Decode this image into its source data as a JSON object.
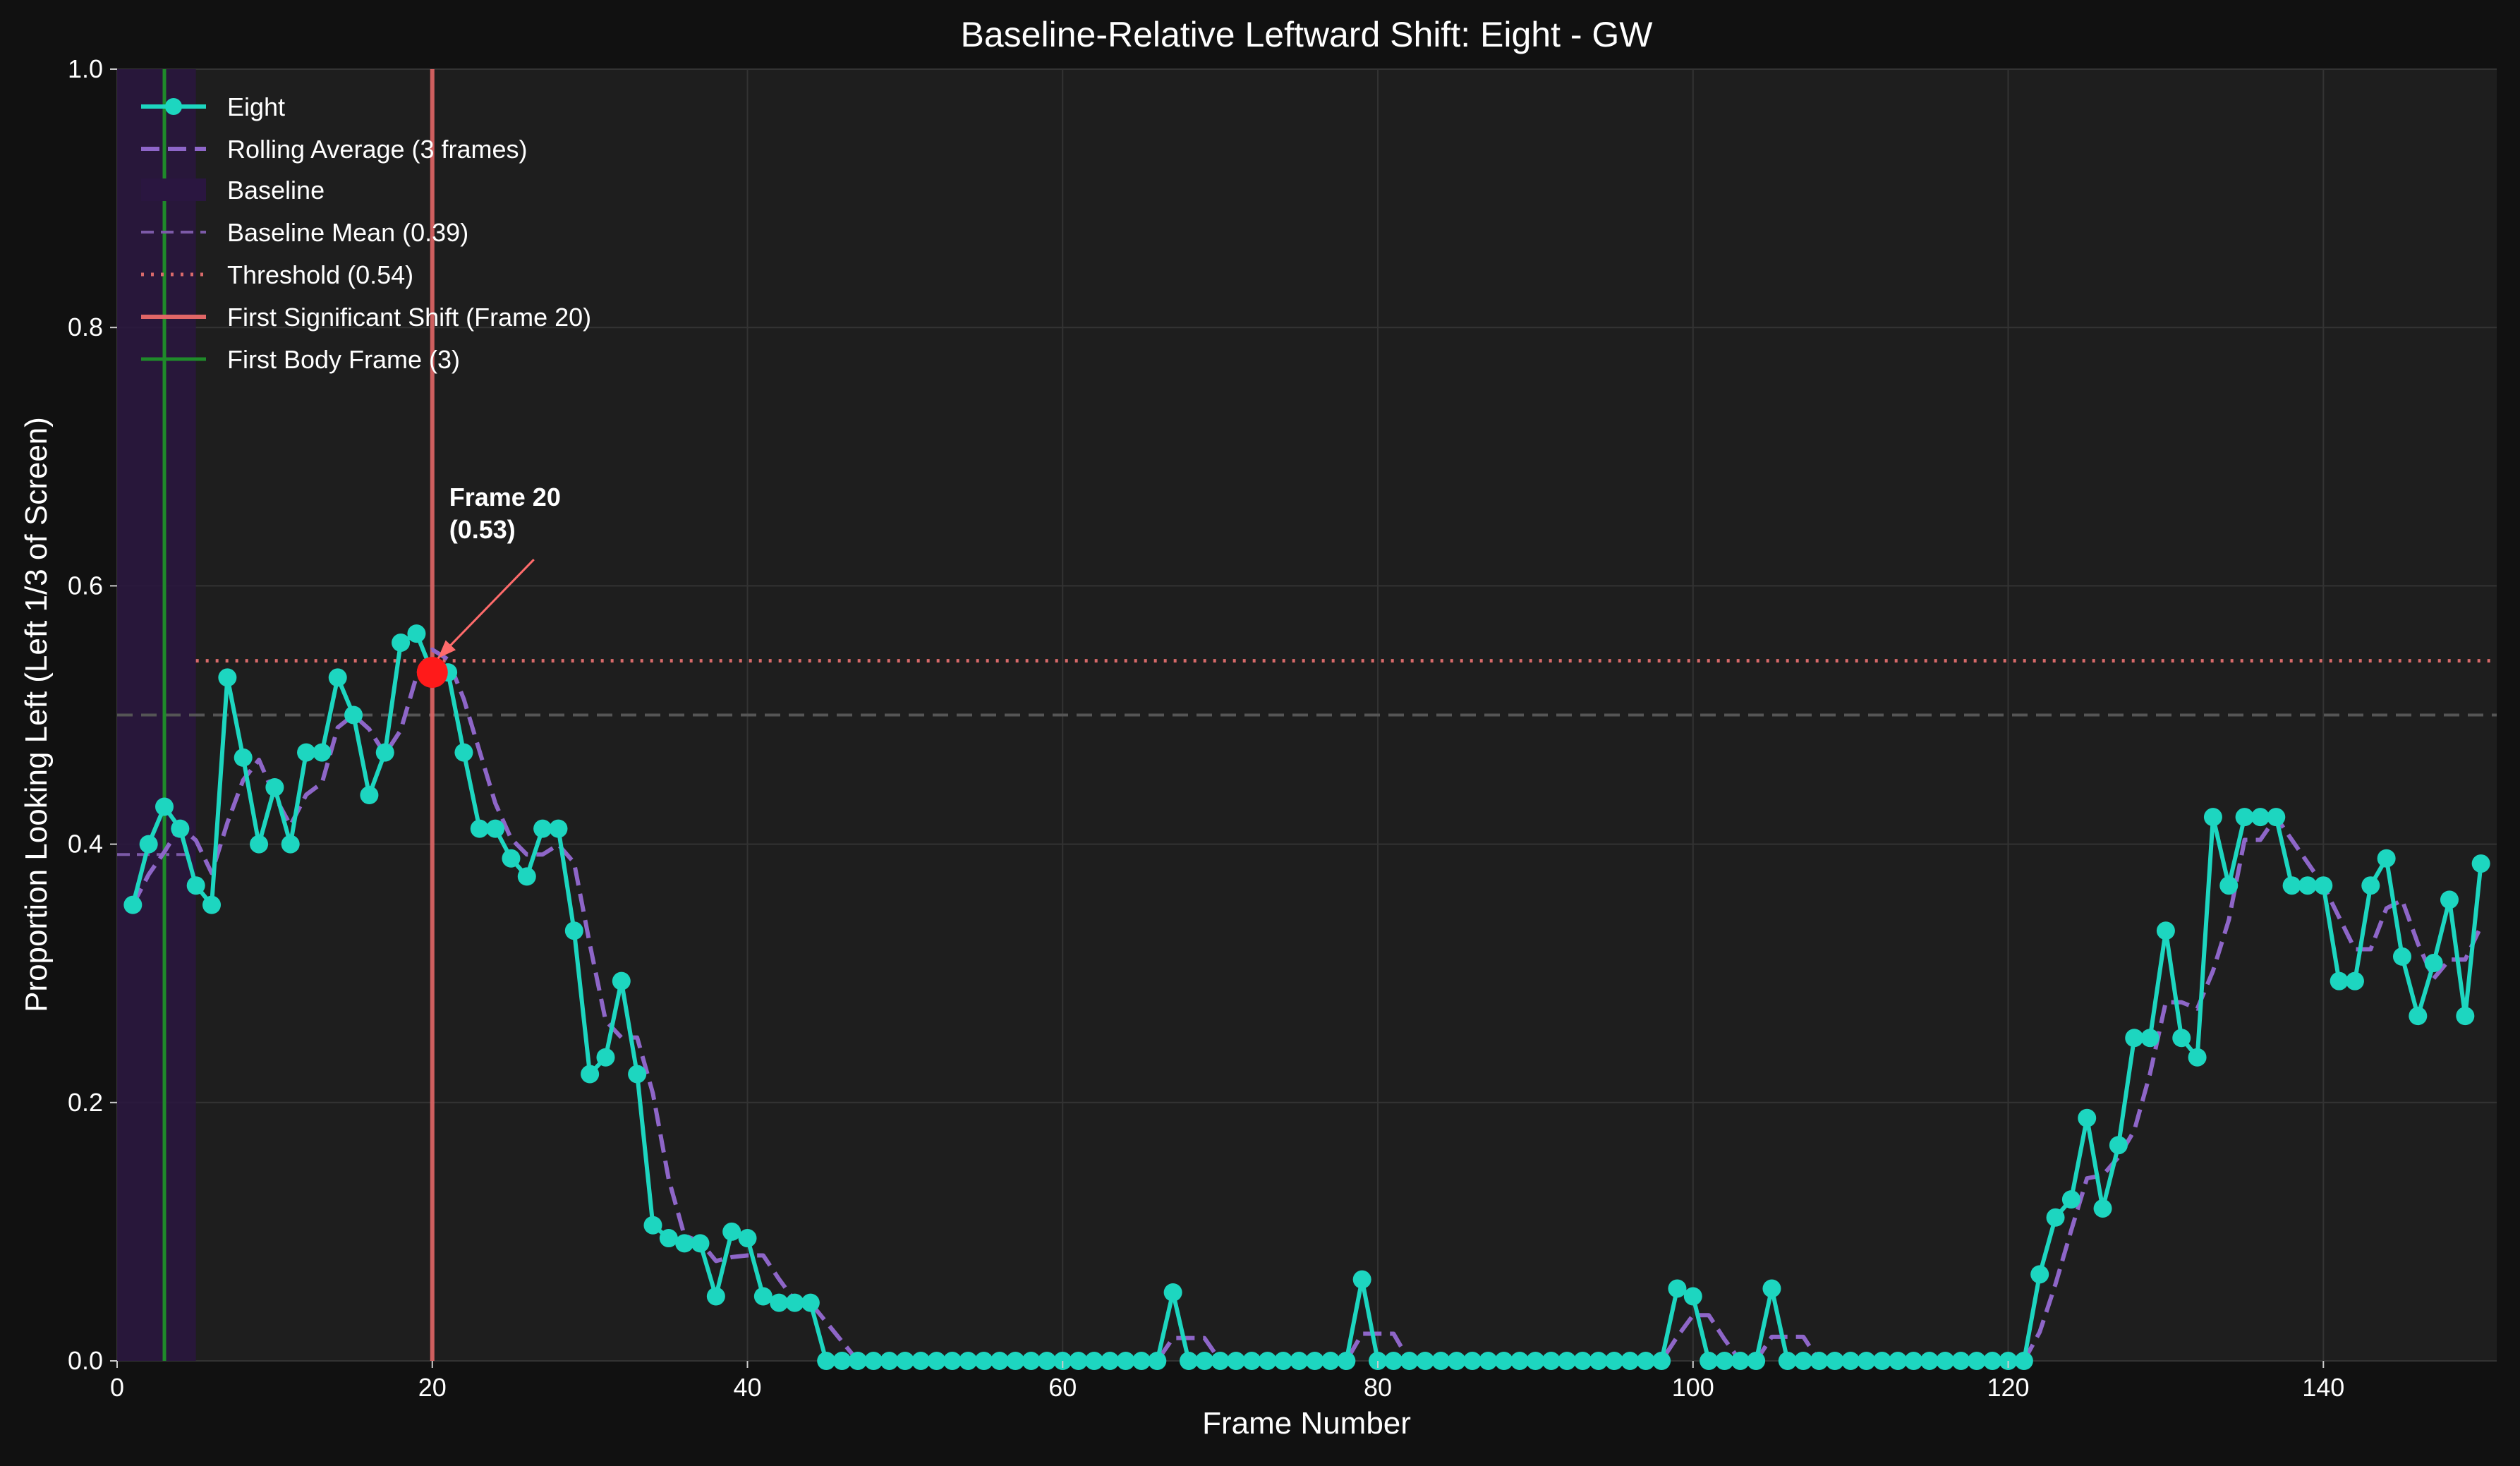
{
  "chart_data": {
    "type": "line",
    "title": "Baseline-Relative Leftward Shift: Eight - GW",
    "xlabel": "Frame Number",
    "ylabel": "Proportion Looking Left (Left 1/3 of Screen)",
    "xlim": [
      0,
      151
    ],
    "ylim": [
      0,
      1.0
    ],
    "xticks": [
      "0",
      "20",
      "40",
      "60",
      "80",
      "100",
      "120",
      "140"
    ],
    "yticks": [
      "0.0",
      "0.2",
      "0.4",
      "0.6",
      "0.8",
      "1.0"
    ],
    "grid": true,
    "legend_position": "top-left",
    "series": [
      {
        "name": "Eight",
        "x": [
          1,
          2,
          3,
          4,
          5,
          6,
          7,
          8,
          9,
          10,
          11,
          12,
          13,
          14,
          15,
          16,
          17,
          18,
          19,
          20,
          21,
          22,
          23,
          24,
          25,
          26,
          27,
          28,
          29,
          30,
          31,
          32,
          33,
          34,
          35,
          36,
          37,
          38,
          39,
          40,
          41,
          42,
          43,
          44,
          45,
          46,
          47,
          48,
          49,
          50,
          51,
          52,
          53,
          54,
          55,
          56,
          57,
          58,
          59,
          60,
          61,
          62,
          63,
          64,
          65,
          66,
          67,
          68,
          69,
          70,
          71,
          72,
          73,
          74,
          75,
          76,
          77,
          78,
          79,
          80,
          81,
          82,
          83,
          84,
          85,
          86,
          87,
          88,
          89,
          90,
          91,
          92,
          93,
          94,
          95,
          96,
          97,
          98,
          99,
          100,
          101,
          102,
          103,
          104,
          105,
          106,
          107,
          108,
          109,
          110,
          111,
          112,
          113,
          114,
          115,
          116,
          117,
          118,
          119,
          120,
          121,
          122,
          123,
          124,
          125,
          126,
          127,
          128,
          129,
          130,
          131,
          132,
          133,
          134,
          135,
          136,
          137,
          138,
          139,
          140,
          141,
          142,
          143,
          144,
          145,
          146,
          147,
          148,
          149,
          150
        ],
        "y": [
          0.353,
          0.4,
          0.429,
          0.412,
          0.368,
          0.353,
          0.529,
          0.467,
          0.4,
          0.444,
          0.4,
          0.471,
          0.471,
          0.529,
          0.5,
          0.438,
          0.471,
          0.556,
          0.563,
          0.533,
          0.533,
          0.471,
          0.412,
          0.412,
          0.389,
          0.375,
          0.412,
          0.412,
          0.333,
          0.222,
          0.235,
          0.294,
          0.222,
          0.105,
          0.095,
          0.091,
          0.091,
          0.05,
          0.1,
          0.095,
          0.05,
          0.045,
          0.045,
          0.045,
          0,
          0,
          0,
          0,
          0,
          0,
          0,
          0,
          0,
          0,
          0,
          0,
          0,
          0,
          0,
          0,
          0,
          0,
          0,
          0,
          0,
          0,
          0.053,
          0,
          0,
          0,
          0,
          0,
          0,
          0,
          0,
          0,
          0,
          0,
          0.063,
          0,
          0,
          0,
          0,
          0,
          0,
          0,
          0,
          0,
          0,
          0,
          0,
          0,
          0,
          0,
          0,
          0,
          0,
          0,
          0.056,
          0.05,
          0,
          0,
          0,
          0,
          0.056,
          0,
          0,
          0,
          0,
          0,
          0,
          0,
          0,
          0,
          0,
          0,
          0,
          0,
          0,
          0,
          0,
          0.067,
          0.111,
          0.125,
          0.188,
          0.118,
          0.167,
          0.25,
          0.25,
          0.333,
          0.25,
          0.235,
          0.421,
          0.368,
          0.421,
          0.421,
          0.421,
          0.368,
          0.368,
          0.368,
          0.294,
          0.294,
          0.368,
          0.389,
          0.313,
          0.267,
          0.308,
          0.357,
          0.267,
          0.385
        ],
        "color": "#1dd6c0"
      },
      {
        "name": "Rolling Average (3 frames)",
        "window": 3,
        "color": "#8e66c8"
      }
    ],
    "baseline": {
      "name": "Baseline",
      "x_range": [
        0,
        5
      ],
      "color": "#2a1640"
    },
    "baseline_mean": {
      "name": "Baseline Mean (0.39)",
      "value": 0.392,
      "x_range": [
        0,
        5
      ],
      "color": "#7c5aa8"
    },
    "threshold": {
      "name": "Threshold (0.54)",
      "value": 0.542,
      "x_start": 5,
      "color": "#d96a6a"
    },
    "reference_line": {
      "value": 0.5,
      "color": "#555555"
    },
    "first_shift": {
      "name": "First Significant Shift (Frame 20)",
      "frame": 20,
      "value": 0.533,
      "color": "#e06666",
      "marker_color": "#ff1a1a"
    },
    "first_body": {
      "name": "First Body Frame (3)",
      "frame": 3,
      "color": "#1f8a2a"
    },
    "annotation": {
      "line1": "Frame 20",
      "line2": "(0.53)"
    }
  }
}
